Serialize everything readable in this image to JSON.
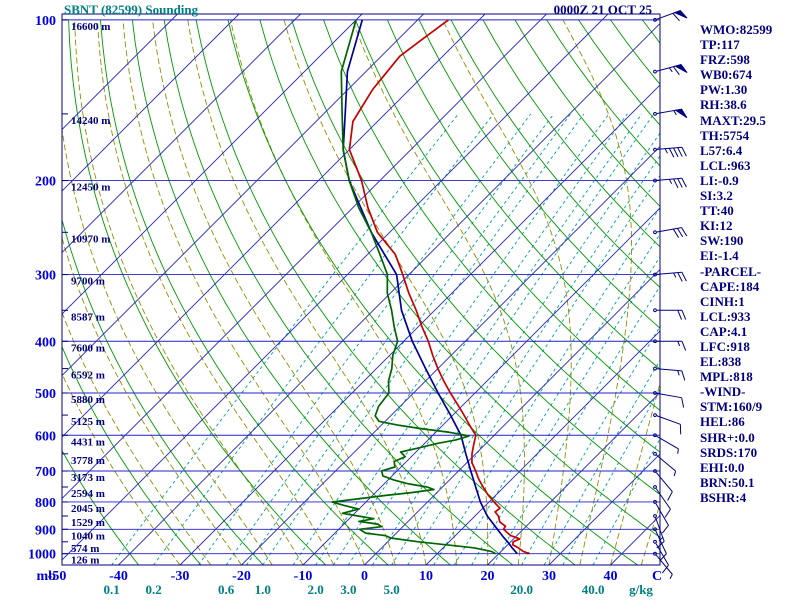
{
  "header": {
    "title": "SBNT (82599) Sounding",
    "datetime": "0000Z 21 OCT 25"
  },
  "indices": [
    "WMO:82599",
    "TP:117",
    "FRZ:598",
    "WB0:674",
    "PW:1.30",
    "RH:38.6",
    "MAXT:29.5",
    "TH:5754",
    "L57:6.4",
    "LCL:963",
    "LI:-0.9",
    "SI:3.2",
    "TT:40",
    "KI:12",
    "SW:190",
    "EI:-1.4",
    "-PARCEL-",
    "CAPE:184",
    "CINH:1",
    "LCL:933",
    "CAP:4.1",
    "LFC:918",
    "EL:838",
    "MPL:818",
    "-WIND-",
    "STM:160/9",
    "HEL:86",
    "SHR+:0.0",
    "SRDS:170",
    "EHI:0.0",
    "BRN:50.1",
    "BSHR:4"
  ],
  "axes": {
    "pressure_unit_label": "mb",
    "temp_unit_label": "C",
    "mixratio_unit_label": "g/kg",
    "pressure_labels": [
      100,
      200,
      300,
      400,
      500,
      600,
      700,
      800,
      900,
      1000
    ],
    "temp_labels": [
      -50,
      -40,
      -30,
      -20,
      -10,
      0,
      10,
      20,
      30,
      40
    ],
    "mixratio_labels": [
      {
        "w": 0.1,
        "label": "0.1"
      },
      {
        "w": 0.2,
        "label": "0.2"
      },
      {
        "w": 0.6,
        "label": "0.6"
      },
      {
        "w": 1,
        "label": "1.0"
      },
      {
        "w": 2,
        "label": "2.0"
      },
      {
        "w": 3,
        "label": "3.0"
      },
      {
        "w": 5,
        "label": "5.0"
      },
      {
        "w": 20,
        "label": "20.0"
      },
      {
        "w": 40,
        "label": "40.0"
      }
    ],
    "heights": [
      {
        "p": 100,
        "label": "16600 m"
      },
      {
        "p": 150,
        "label": "14240 m"
      },
      {
        "p": 200,
        "label": "12450 m"
      },
      {
        "p": 250,
        "label": "10970 m"
      },
      {
        "p": 300,
        "label": "9700 m"
      },
      {
        "p": 350,
        "label": "8587 m"
      },
      {
        "p": 400,
        "label": "7600 m"
      },
      {
        "p": 450,
        "label": "6592 m"
      },
      {
        "p": 500,
        "label": "5880 m"
      },
      {
        "p": 550,
        "label": "5125 m"
      },
      {
        "p": 600,
        "label": "4431 m"
      },
      {
        "p": 650,
        "label": "3778 m"
      },
      {
        "p": 700,
        "label": "3173 m"
      },
      {
        "p": 750,
        "label": "2594 m"
      },
      {
        "p": 800,
        "label": "2045 m"
      },
      {
        "p": 850,
        "label": "1529 m"
      },
      {
        "p": 900,
        "label": "1040 m"
      },
      {
        "p": 950,
        "label": "574 m"
      },
      {
        "p": 1000,
        "label": "126 m"
      }
    ]
  },
  "chart_data": {
    "type": "skewt-log-p-sounding",
    "title": "SBNT (82599) Sounding",
    "xlabel": "C",
    "ylabel": "mb",
    "pressure_range_mb": [
      100,
      1050
    ],
    "surface_temp_range_c": [
      -50,
      48
    ],
    "skew_deg": 45,
    "colors": {
      "isobar": "#2222cc",
      "isotherm": "#2222cc",
      "dry_adiabat": "#009900",
      "moist_adiabat": "#909000",
      "mixing_ratio": "#00a0a0",
      "temperature": "#c80000",
      "dewpoint": "#006400",
      "parcel": "#000099",
      "wind_barb": "#000080",
      "axis_blue": "#0000dd",
      "axis_navy": "#000080",
      "teal": "#008080"
    },
    "grid": {
      "isobars_mb": [
        100,
        200,
        300,
        400,
        500,
        600,
        700,
        800,
        900,
        1000
      ],
      "isotherms_c": {
        "from": -120,
        "to": 40,
        "step": 10
      },
      "dry_adiabats_theta_c": {
        "from": -40,
        "to": 180,
        "step": 10
      },
      "moist_adiabats_start_c": {
        "from": -30,
        "to": 45,
        "step": 5
      },
      "mixing_ratio_lines_gkg": [
        0.1,
        0.2,
        0.4,
        0.6,
        0.8,
        1,
        1.5,
        2,
        2.5,
        3,
        4,
        5,
        6,
        8,
        10,
        12,
        15,
        20,
        25,
        30,
        40
      ]
    },
    "series": [
      {
        "name": "temperature",
        "points_p_t": [
          [
            1000,
            25
          ],
          [
            990,
            23.6
          ],
          [
            975,
            22.2
          ],
          [
            962,
            20.8
          ],
          [
            950,
            20.4
          ],
          [
            938,
            21
          ],
          [
            925,
            19
          ],
          [
            900,
            16.8
          ],
          [
            888,
            16.6
          ],
          [
            872,
            15
          ],
          [
            850,
            13.8
          ],
          [
            835,
            12.6
          ],
          [
            822,
            12.8
          ],
          [
            800,
            10.8
          ],
          [
            775,
            8.6
          ],
          [
            750,
            6.6
          ],
          [
            725,
            4.6
          ],
          [
            700,
            2.8
          ],
          [
            675,
            0.8
          ],
          [
            650,
            -0.6
          ],
          [
            625,
            -1.8
          ],
          [
            600,
            -3
          ],
          [
            575,
            -5.6
          ],
          [
            550,
            -8.2
          ],
          [
            525,
            -11
          ],
          [
            500,
            -14
          ],
          [
            475,
            -17
          ],
          [
            450,
            -20
          ],
          [
            425,
            -23
          ],
          [
            400,
            -26
          ],
          [
            375,
            -29.5
          ],
          [
            350,
            -33
          ],
          [
            325,
            -37
          ],
          [
            300,
            -41
          ],
          [
            275,
            -45.5
          ],
          [
            250,
            -52
          ],
          [
            225,
            -57.5
          ],
          [
            200,
            -63
          ],
          [
            175,
            -70
          ],
          [
            155,
            -74
          ],
          [
            135,
            -76
          ],
          [
            117,
            -77
          ],
          [
            108,
            -76
          ],
          [
            100,
            -75
          ]
        ]
      },
      {
        "name": "dewpoint",
        "points_p_t": [
          [
            1000,
            19.5
          ],
          [
            990,
            18.4
          ],
          [
            975,
            15
          ],
          [
            960,
            9
          ],
          [
            950,
            5
          ],
          [
            935,
            0
          ],
          [
            925,
            -1.4
          ],
          [
            915,
            -5
          ],
          [
            900,
            -6.6
          ],
          [
            890,
            -3.5
          ],
          [
            880,
            -4.5
          ],
          [
            870,
            -8
          ],
          [
            860,
            -6
          ],
          [
            850,
            -9
          ],
          [
            840,
            -12
          ],
          [
            825,
            -10
          ],
          [
            812,
            -13
          ],
          [
            800,
            -15.5
          ],
          [
            790,
            -12
          ],
          [
            778,
            -8
          ],
          [
            768,
            -4
          ],
          [
            758,
            -1
          ],
          [
            750,
            -2.5
          ],
          [
            740,
            -6
          ],
          [
            728,
            -9
          ],
          [
            715,
            -11.5
          ],
          [
            700,
            -12.5
          ],
          [
            688,
            -11
          ],
          [
            672,
            -12
          ],
          [
            658,
            -11
          ],
          [
            645,
            -12.5
          ],
          [
            635,
            -10.5
          ],
          [
            622,
            -8
          ],
          [
            612,
            -5.5
          ],
          [
            602,
            -4
          ],
          [
            592,
            -8
          ],
          [
            583,
            -13
          ],
          [
            575,
            -17
          ],
          [
            565,
            -21
          ],
          [
            552,
            -22.5
          ],
          [
            530,
            -23.5
          ],
          [
            500,
            -24
          ],
          [
            475,
            -26
          ],
          [
            450,
            -27.5
          ],
          [
            425,
            -29.5
          ],
          [
            400,
            -31
          ],
          [
            375,
            -34
          ],
          [
            350,
            -37
          ],
          [
            325,
            -40.5
          ],
          [
            300,
            -43.5
          ],
          [
            275,
            -48
          ],
          [
            250,
            -53
          ],
          [
            225,
            -59
          ],
          [
            200,
            -65
          ],
          [
            175,
            -71
          ],
          [
            150,
            -77
          ],
          [
            125,
            -84
          ],
          [
            100,
            -90
          ]
        ]
      },
      {
        "name": "parcel",
        "points_p_t": [
          [
            1000,
            23
          ],
          [
            975,
            21.2
          ],
          [
            950,
            19.5
          ],
          [
            933,
            18.2
          ],
          [
            900,
            15.8
          ],
          [
            850,
            12
          ],
          [
            800,
            8.6
          ],
          [
            750,
            5.4
          ],
          [
            700,
            2
          ],
          [
            650,
            -1.6
          ],
          [
            600,
            -5.4
          ],
          [
            550,
            -10.4
          ],
          [
            500,
            -16
          ],
          [
            450,
            -22
          ],
          [
            400,
            -28.6
          ],
          [
            350,
            -35.4
          ],
          [
            300,
            -42
          ],
          [
            250,
            -53
          ],
          [
            200,
            -65
          ],
          [
            175,
            -71
          ],
          [
            150,
            -76.5
          ],
          [
            125,
            -83
          ],
          [
            100,
            -89
          ]
        ]
      }
    ],
    "winds": [
      {
        "p": 1000,
        "dir": 140,
        "spd": 5
      },
      {
        "p": 950,
        "dir": 150,
        "spd": 10
      },
      {
        "p": 900,
        "dir": 155,
        "spd": 10
      },
      {
        "p": 850,
        "dir": 160,
        "spd": 15
      },
      {
        "p": 800,
        "dir": 150,
        "spd": 10
      },
      {
        "p": 750,
        "dir": 145,
        "spd": 10
      },
      {
        "p": 700,
        "dir": 140,
        "spd": 10
      },
      {
        "p": 650,
        "dir": 130,
        "spd": 5
      },
      {
        "p": 600,
        "dir": 120,
        "spd": 5
      },
      {
        "p": 550,
        "dir": 110,
        "spd": 10
      },
      {
        "p": 500,
        "dir": 100,
        "spd": 10
      },
      {
        "p": 450,
        "dir": 95,
        "spd": 15
      },
      {
        "p": 400,
        "dir": 90,
        "spd": 15
      },
      {
        "p": 350,
        "dir": 90,
        "spd": 20
      },
      {
        "p": 300,
        "dir": 85,
        "spd": 25
      },
      {
        "p": 250,
        "dir": 80,
        "spd": 30
      },
      {
        "p": 200,
        "dir": 85,
        "spd": 35
      },
      {
        "p": 175,
        "dir": 85,
        "spd": 45
      },
      {
        "p": 150,
        "dir": 80,
        "spd": 55
      },
      {
        "p": 125,
        "dir": 75,
        "spd": 65
      },
      {
        "p": 100,
        "dir": 70,
        "spd": 60
      }
    ]
  }
}
